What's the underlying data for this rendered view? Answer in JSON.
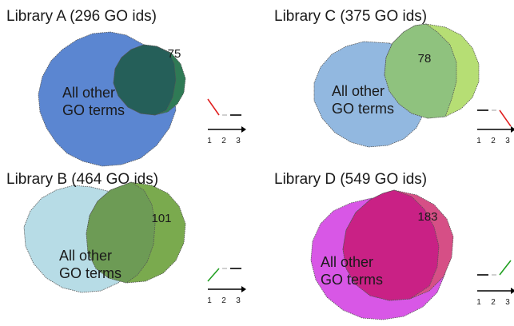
{
  "panels": {
    "a": {
      "title": "Library A (296 GO ids)",
      "overlap_count": "75",
      "other_label_line1": "All other",
      "other_label_line2": "GO terms",
      "large_color": "#5b86d1",
      "small_color": "#2f7a55",
      "overlap_color": "#255f59",
      "trend_color": "#e02020",
      "trend_pattern": "down-then-flat"
    },
    "c": {
      "title": "Library C (375 GO ids)",
      "overlap_count": "78",
      "other_label_line1": "All other",
      "other_label_line2": "GO terms",
      "large_color": "#92b8e0",
      "small_color": "#b6de74",
      "overlap_color": "#8fc27e",
      "trend_color": "#e02020",
      "trend_pattern": "flat-then-down"
    },
    "b": {
      "title": "Library B (464 GO ids)",
      "overlap_count": "101",
      "other_label_line1": "All other",
      "other_label_line2": "GO terms",
      "large_color": "#b7dce6",
      "small_color": "#7aaa4e",
      "overlap_color": "#6d9b55",
      "trend_color": "#22a022",
      "trend_pattern": "up-then-flat"
    },
    "d": {
      "title": "Library D (549 GO ids)",
      "overlap_count": "183",
      "other_label_line1": "All other",
      "other_label_line2": "GO terms",
      "large_color": "#d857e6",
      "small_color": "#d64f86",
      "overlap_color": "#c92185",
      "trend_color": "#22a022",
      "trend_pattern": "flat-then-up"
    }
  },
  "axis_ticks": [
    "1",
    "2",
    "3"
  ]
}
